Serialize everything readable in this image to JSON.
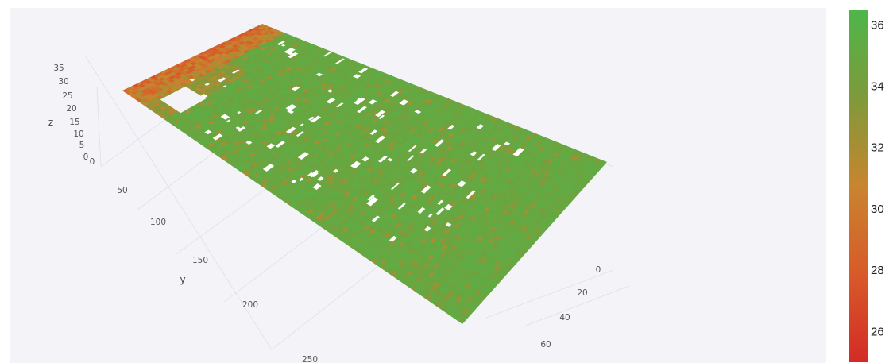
{
  "chart_data": {
    "type": "surface3d",
    "axes": {
      "x": {
        "label": "",
        "ticks": [
          0,
          20,
          40,
          60
        ],
        "range": [
          0,
          72
        ]
      },
      "y": {
        "label": "y",
        "ticks": [
          0,
          50,
          100,
          150,
          200,
          250
        ],
        "range": [
          0,
          280
        ]
      },
      "z": {
        "label": "z",
        "ticks": [
          0,
          5,
          10,
          15,
          20,
          25,
          30,
          35
        ],
        "range": [
          0,
          36
        ]
      }
    },
    "surface": {
      "typical_z": 35,
      "edge_z_low": 27,
      "has_missing_patches": true
    },
    "colorbar": {
      "min": 25,
      "max": 36.5,
      "ticks": [
        26,
        28,
        30,
        32,
        34,
        36
      ],
      "colors": [
        "#d42b25",
        "#d85a2a",
        "#c8852e",
        "#7e9a3a",
        "#4db64a"
      ]
    },
    "grid": true,
    "background": "#f4f4f8"
  }
}
